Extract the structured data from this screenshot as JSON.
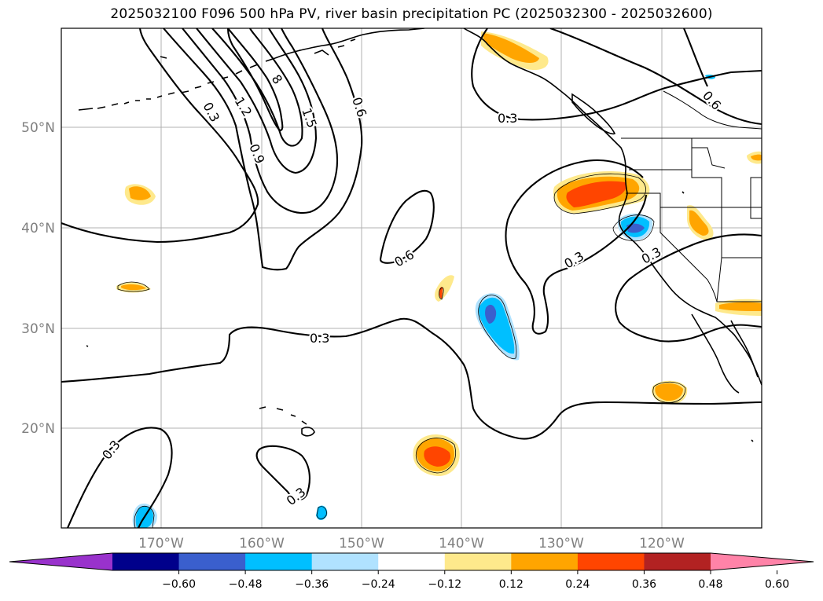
{
  "title": "2025032100 F096 500 hPa PV, river basin precipitation PC (2025032300 - 2025032600)",
  "map": {
    "lat_ticks": [
      "50°N",
      "40°N",
      "30°N",
      "20°N"
    ],
    "lon_ticks": [
      "170°W",
      "160°W",
      "150°W",
      "140°W",
      "130°W",
      "120°W"
    ],
    "grid": true,
    "contour_labels": [
      "0.3",
      "1.2",
      "8",
      "1.5",
      "0.6",
      "0.9",
      "0.3",
      "0.6",
      "0.6",
      "0.3",
      "0.3",
      "0.3",
      "0.3",
      "0.3"
    ]
  },
  "colorbar": {
    "extend": "both",
    "colors": [
      "#9932cc",
      "#00008b",
      "#3a5fcd",
      "#00bfff",
      "#b0e2ff",
      "#ffffff",
      "#fee98c",
      "#ffa500",
      "#ff4500",
      "#b22222",
      "#ff83a8"
    ],
    "tick_labels": [
      "−0.60",
      "−0.48",
      "−0.36",
      "−0.24",
      "−0.12",
      "0.12",
      "0.24",
      "0.36",
      "0.48",
      "0.60"
    ]
  }
}
